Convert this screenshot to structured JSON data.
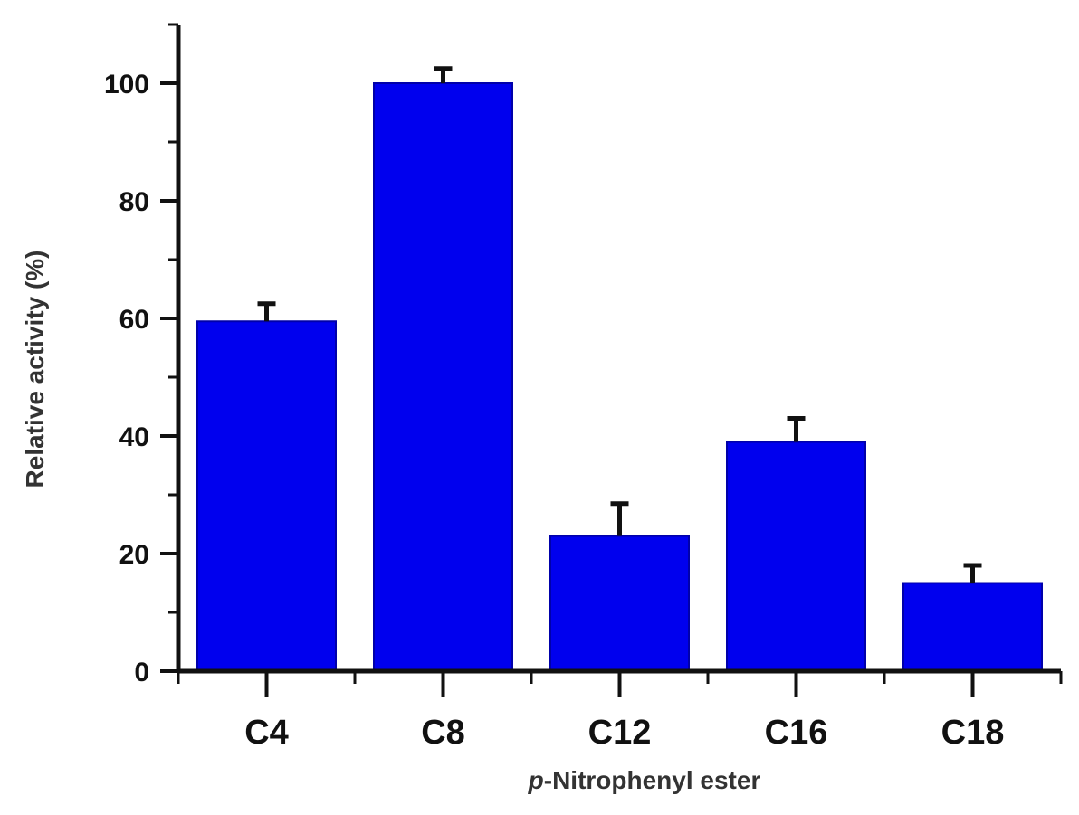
{
  "chart_data": {
    "type": "bar",
    "title": "",
    "xlabel_prefix": "p",
    "xlabel_rest": "-Nitrophenyl ester",
    "ylabel": "Relative activity (%)",
    "categories": [
      "C4",
      "C8",
      "C12",
      "C16",
      "C18"
    ],
    "series": [
      {
        "values": [
          59.5,
          100,
          23,
          39,
          15
        ],
        "error": [
          3,
          2.5,
          5.5,
          4,
          3
        ]
      }
    ],
    "ylim": [
      0,
      110
    ],
    "yticks": [
      "0",
      "20",
      "40",
      "60",
      "80",
      "100"
    ],
    "grid": false,
    "legend": "none",
    "colors": {
      "bar": "#0000ee",
      "bar_edge": "#0000aa",
      "axis": "#111111",
      "error_bar": "#111111"
    }
  }
}
